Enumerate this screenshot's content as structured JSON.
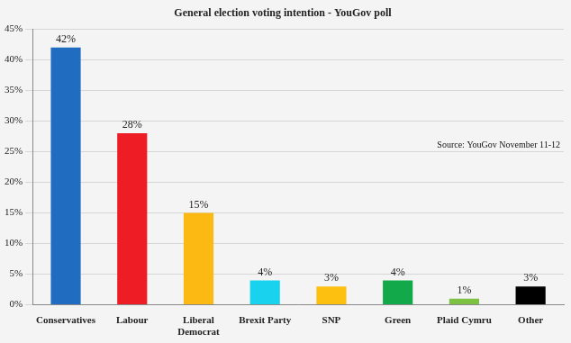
{
  "chart_data": {
    "type": "bar",
    "title": "General election voting intention - YouGov poll",
    "annotation": "Source: YouGov November 11-12",
    "categories": [
      "Conservatives",
      "Labour",
      "Liberal Democrat",
      "Brexit Party",
      "SNP",
      "Green",
      "Plaid Cymru",
      "Other"
    ],
    "values": [
      42,
      28,
      15,
      4,
      3,
      4,
      1,
      3
    ],
    "value_labels": [
      "42%",
      "28%",
      "15%",
      "4%",
      "3%",
      "4%",
      "1%",
      "3%"
    ],
    "colors": [
      "#1f6cc1",
      "#ee1c25",
      "#fdb913",
      "#19d3ee",
      "#fdc010",
      "#12a94a",
      "#7dc242",
      "#000000"
    ],
    "ylim": [
      0,
      45
    ],
    "yticks": [
      {
        "value": 0,
        "label": "0%"
      },
      {
        "value": 5,
        "label": "5%"
      },
      {
        "value": 10,
        "label": "10%"
      },
      {
        "value": 15,
        "label": "15%"
      },
      {
        "value": 20,
        "label": "20%"
      },
      {
        "value": 25,
        "label": "25%"
      },
      {
        "value": 30,
        "label": "30%"
      },
      {
        "value": 35,
        "label": "35%"
      },
      {
        "value": 40,
        "label": "40%"
      },
      {
        "value": 45,
        "label": "45%"
      }
    ],
    "grid": true,
    "data_labels": true
  }
}
